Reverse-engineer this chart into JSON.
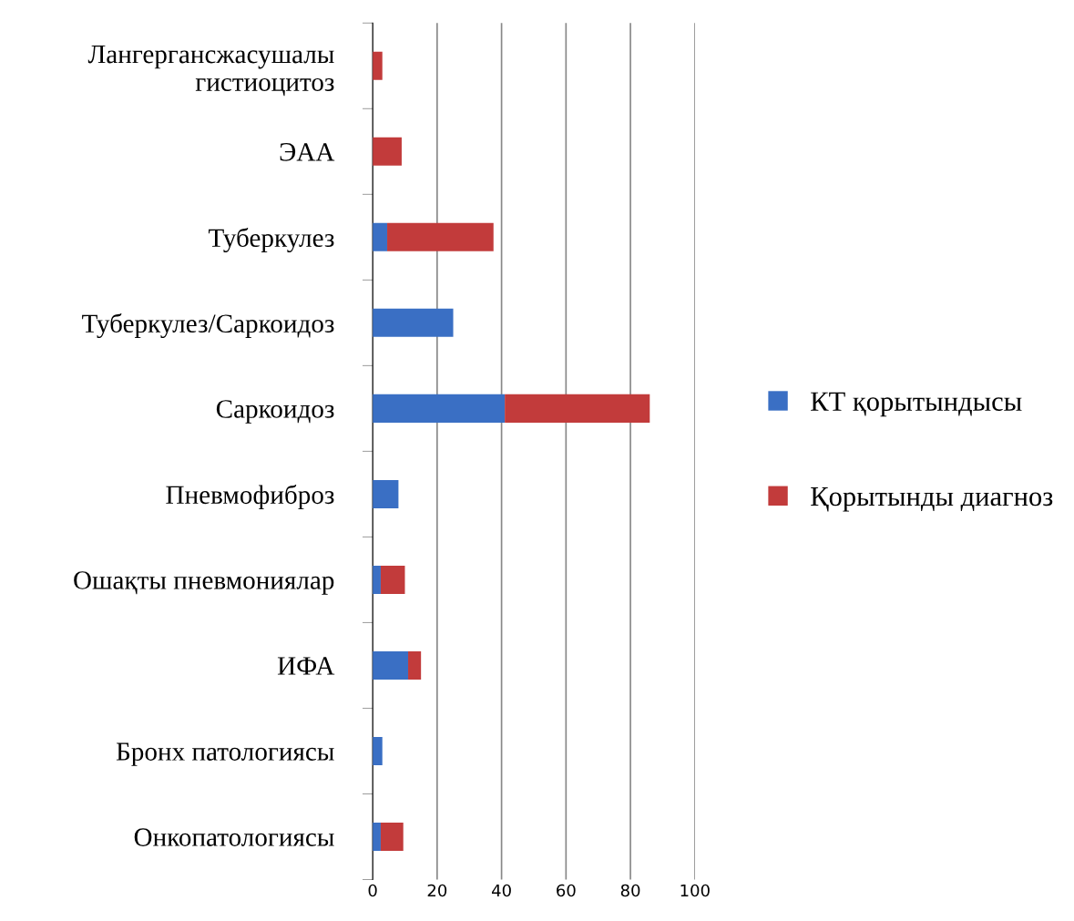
{
  "chart_data": {
    "type": "bar",
    "orientation": "horizontal",
    "stacked": true,
    "categories": [
      "Лангергансжасушалы гистиоцитоз",
      "ЭАА",
      "Туберкулез",
      "Туберкулез/Саркоидоз",
      "Саркоидоз",
      "Пневмофиброз",
      "Ошақты пневмониялар",
      "ИФА",
      "Бронх патологиясы",
      "Онкопатологиясы"
    ],
    "series": [
      {
        "name": "КТ қорытындысы",
        "color": "#3a6fc4",
        "values": [
          0,
          0,
          4.5,
          25,
          41,
          8,
          2.5,
          11,
          3,
          2.5
        ]
      },
      {
        "name": "Қорытынды диагноз",
        "color": "#c23b3b",
        "values": [
          3,
          9,
          33,
          0,
          45,
          0,
          7.5,
          4,
          0,
          7
        ]
      }
    ],
    "xlim": [
      0,
      100
    ],
    "xticks": [
      0,
      20,
      40,
      60,
      80,
      100
    ],
    "grid": "x",
    "legend": "right"
  }
}
